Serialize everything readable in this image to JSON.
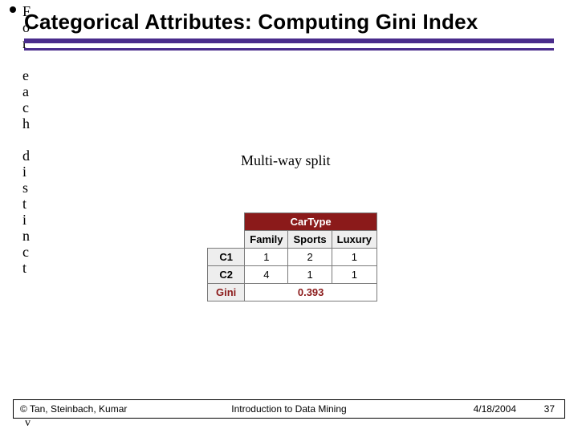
{
  "title": "Categorical Attributes: Computing Gini Index",
  "bullet_vertical": "For each distinct",
  "subtitle": "Multi-way split",
  "table": {
    "top_header": "CarType",
    "columns": [
      "Family",
      "Sports",
      "Luxury"
    ],
    "rows": [
      {
        "label": "C1",
        "values": [
          "1",
          "2",
          "1"
        ]
      },
      {
        "label": "C2",
        "values": [
          "4",
          "1",
          "1"
        ]
      }
    ],
    "gini": {
      "label": "Gini",
      "value": "0.393"
    }
  },
  "footer": {
    "left": "© Tan, Steinbach, Kumar",
    "center": "Introduction to Data Mining",
    "date": "4/18/2004",
    "page": "37"
  },
  "stray_bottom": "v",
  "colors": {
    "rule": "#4a2c8c",
    "table_header_bg": "#8b1a1a",
    "table_sub_bg": "#eeeeee",
    "gini_color": "#8b1a1a"
  }
}
